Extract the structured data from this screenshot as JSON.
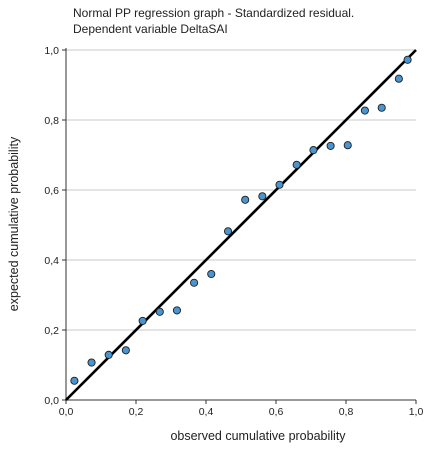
{
  "chart_data": {
    "type": "scatter",
    "title_lines": [
      "Normal PP regression graph - Standardized residual.",
      "Dependent variable DeltaSAI"
    ],
    "xlabel": "observed cumulative probability",
    "ylabel": "expected cumulative probability",
    "xlim": [
      0,
      1
    ],
    "ylim": [
      0,
      1
    ],
    "xticks": [
      "0,0",
      "0,2",
      "0,4",
      "0,6",
      "0,8",
      "1,0"
    ],
    "yticks": [
      "0,0",
      "0,2",
      "0,4",
      "0,6",
      "0,8",
      "1,0"
    ],
    "grid": "horizontal",
    "reference_line": {
      "from": [
        0,
        0
      ],
      "to": [
        1,
        1
      ]
    },
    "points": [
      {
        "x": 0.024,
        "y": 0.055
      },
      {
        "x": 0.073,
        "y": 0.107
      },
      {
        "x": 0.122,
        "y": 0.129
      },
      {
        "x": 0.171,
        "y": 0.142
      },
      {
        "x": 0.219,
        "y": 0.226
      },
      {
        "x": 0.268,
        "y": 0.252
      },
      {
        "x": 0.317,
        "y": 0.256
      },
      {
        "x": 0.366,
        "y": 0.335
      },
      {
        "x": 0.415,
        "y": 0.36
      },
      {
        "x": 0.463,
        "y": 0.482
      },
      {
        "x": 0.512,
        "y": 0.572
      },
      {
        "x": 0.561,
        "y": 0.582
      },
      {
        "x": 0.61,
        "y": 0.615
      },
      {
        "x": 0.659,
        "y": 0.672
      },
      {
        "x": 0.707,
        "y": 0.714
      },
      {
        "x": 0.756,
        "y": 0.726
      },
      {
        "x": 0.805,
        "y": 0.728
      },
      {
        "x": 0.854,
        "y": 0.827
      },
      {
        "x": 0.902,
        "y": 0.835
      },
      {
        "x": 0.951,
        "y": 0.918
      },
      {
        "x": 0.976,
        "y": 0.972
      }
    ],
    "colors": {
      "point_fill": "#4a95cf",
      "point_stroke": "#1f1f1f",
      "line": "#000000",
      "grid": "#c8c8c8",
      "axis": "#333333"
    }
  }
}
